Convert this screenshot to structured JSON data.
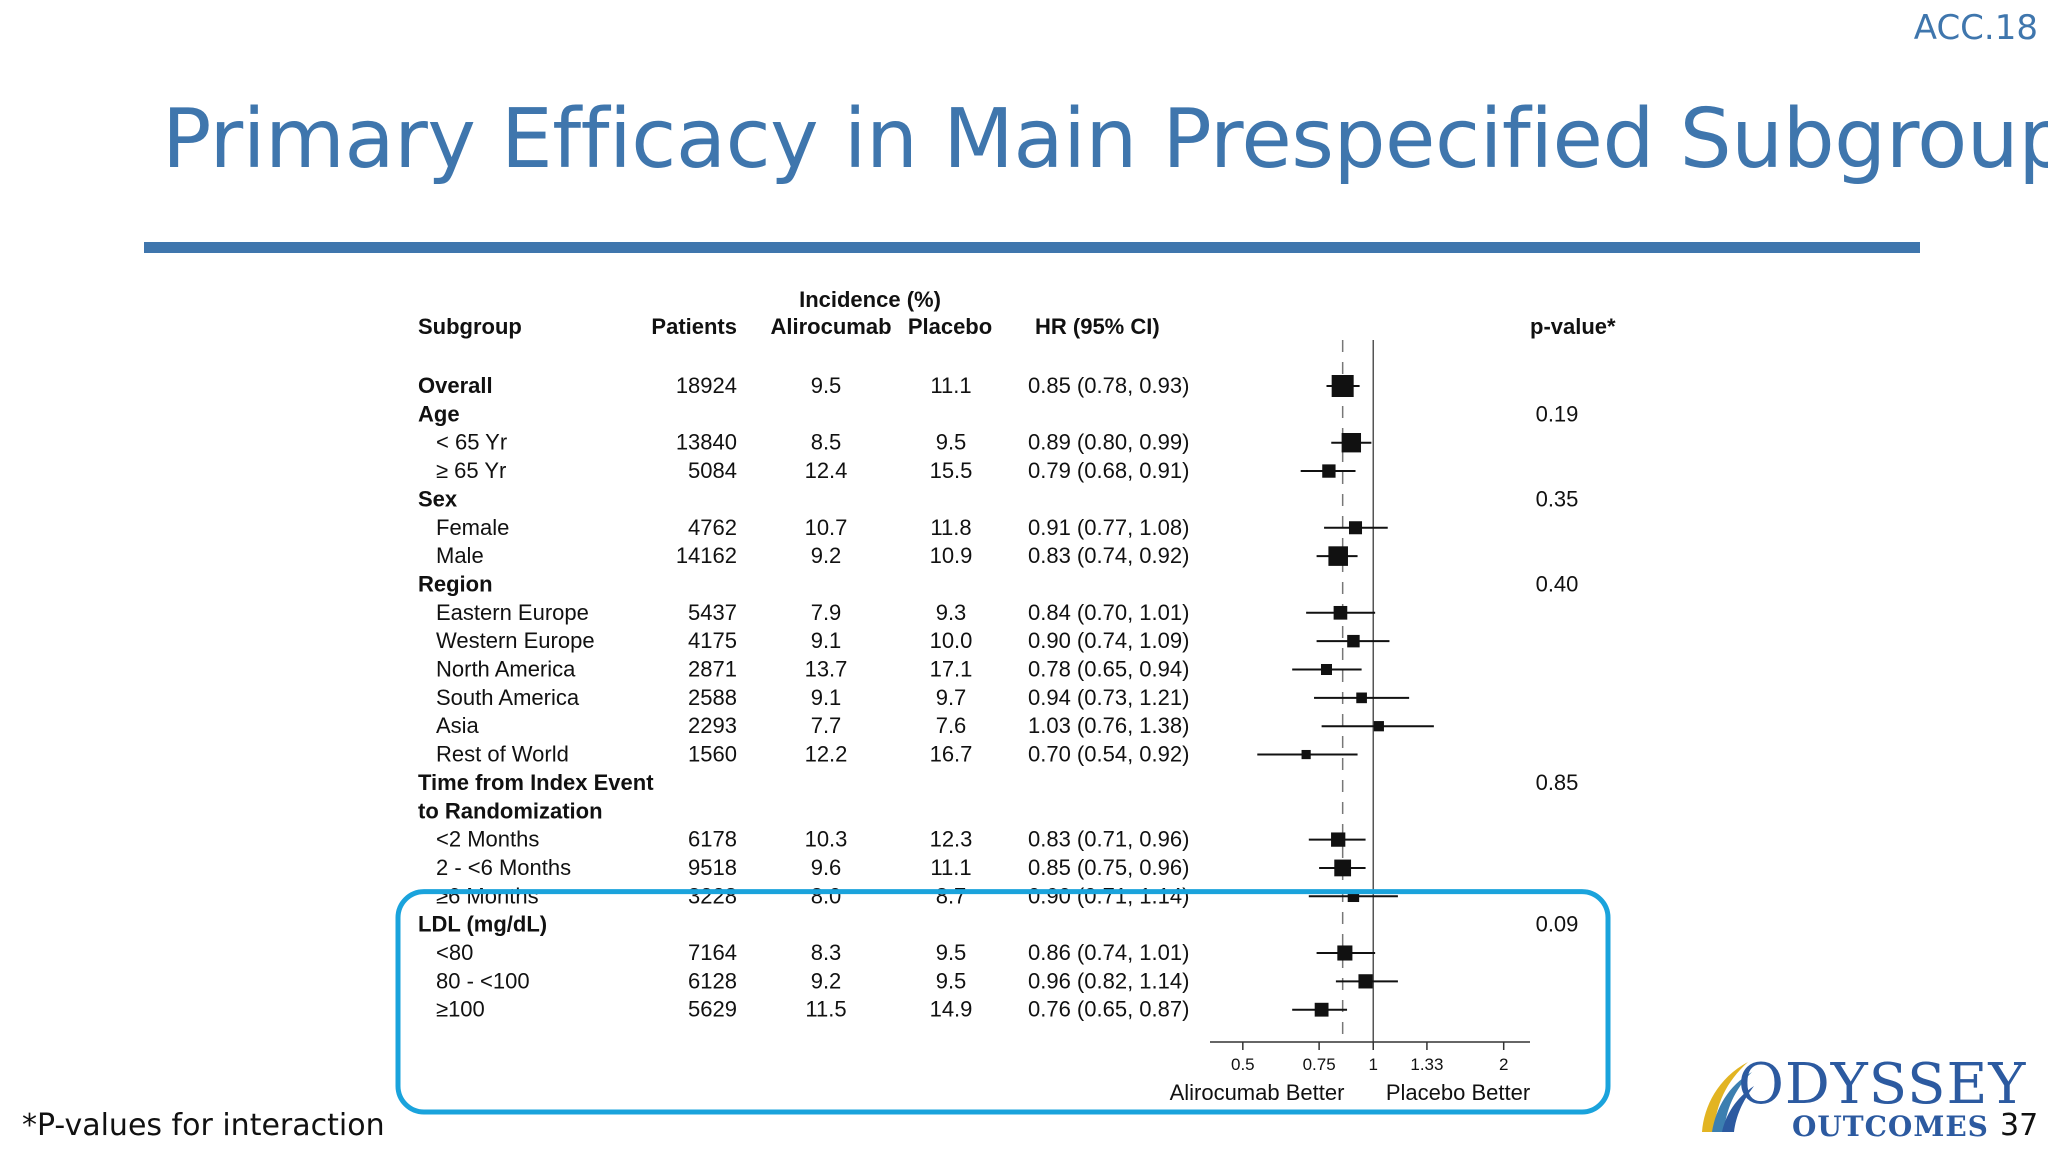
{
  "conference": "ACC.18",
  "title": "Primary Efficacy in Main Prespecified Subgroups",
  "footnote": "*P-values for interaction",
  "page_number": "37",
  "logo": {
    "line1": "ODYSSEY",
    "line2": "OUTCOMES",
    "icon": "swoosh-emblem-icon"
  },
  "colors": {
    "accent": "#3f76ad",
    "highlight": "#1aa3dc",
    "text": "#111111"
  },
  "chart_data": {
    "type": "forest",
    "headers": {
      "subgroup": "Subgroup",
      "patients": "Patients",
      "incidence": "Incidence (%)",
      "alirocumab": "Alirocumab",
      "placebo": "Placebo",
      "hr": "HR (95% CI)",
      "pvalue": "p-value*"
    },
    "x_axis": {
      "scale": "log",
      "range": [
        0.42,
        2.3
      ],
      "ticks": [
        {
          "value": 0.5,
          "label": "0.5"
        },
        {
          "value": 0.75,
          "label": "0.75"
        },
        {
          "value": 1,
          "label": "1"
        },
        {
          "value": 1.33,
          "label": "1.33"
        },
        {
          "value": 2,
          "label": "2"
        }
      ],
      "reference_line": 1,
      "overall_line": 0.85,
      "left_label": "Alirocumab Better",
      "right_label": "Placebo Better"
    },
    "highlight_group": "LDL (mg/dL)",
    "rows": [
      {
        "label": "Overall",
        "heading": true,
        "patients": "18924",
        "alirocumab": "9.5",
        "placebo": "11.1",
        "hr_text": "0.85 (0.78, 0.93)",
        "hr": 0.85,
        "lo": 0.78,
        "hi": 0.93,
        "n": 18924
      },
      {
        "label": "Age",
        "heading": true,
        "pvalue": "0.19"
      },
      {
        "label": "< 65 Yr",
        "patients": "13840",
        "alirocumab": "8.5",
        "placebo": "9.5",
        "hr_text": "0.89 (0.80, 0.99)",
        "hr": 0.89,
        "lo": 0.8,
        "hi": 0.99,
        "n": 13840
      },
      {
        "label": "≥ 65 Yr",
        "patients": "5084",
        "alirocumab": "12.4",
        "placebo": "15.5",
        "hr_text": "0.79 (0.68, 0.91)",
        "hr": 0.79,
        "lo": 0.68,
        "hi": 0.91,
        "n": 5084
      },
      {
        "label": "Sex",
        "heading": true,
        "pvalue": "0.35"
      },
      {
        "label": "Female",
        "patients": "4762",
        "alirocumab": "10.7",
        "placebo": "11.8",
        "hr_text": "0.91 (0.77, 1.08)",
        "hr": 0.91,
        "lo": 0.77,
        "hi": 1.08,
        "n": 4762
      },
      {
        "label": "Male",
        "patients": "14162",
        "alirocumab": "9.2",
        "placebo": "10.9",
        "hr_text": "0.83 (0.74, 0.92)",
        "hr": 0.83,
        "lo": 0.74,
        "hi": 0.92,
        "n": 14162
      },
      {
        "label": "Region",
        "heading": true,
        "pvalue": "0.40"
      },
      {
        "label": "Eastern Europe",
        "patients": "5437",
        "alirocumab": "7.9",
        "placebo": "9.3",
        "hr_text": "0.84 (0.70, 1.01)",
        "hr": 0.84,
        "lo": 0.7,
        "hi": 1.01,
        "n": 5437
      },
      {
        "label": "Western Europe",
        "patients": "4175",
        "alirocumab": "9.1",
        "placebo": "10.0",
        "hr_text": "0.90 (0.74, 1.09)",
        "hr": 0.9,
        "lo": 0.74,
        "hi": 1.09,
        "n": 4175
      },
      {
        "label": "North America",
        "patients": "2871",
        "alirocumab": "13.7",
        "placebo": "17.1",
        "hr_text": "0.78 (0.65, 0.94)",
        "hr": 0.78,
        "lo": 0.65,
        "hi": 0.94,
        "n": 2871
      },
      {
        "label": "South America",
        "patients": "2588",
        "alirocumab": "9.1",
        "placebo": "9.7",
        "hr_text": "0.94 (0.73, 1.21)",
        "hr": 0.94,
        "lo": 0.73,
        "hi": 1.21,
        "n": 2588
      },
      {
        "label": "Asia",
        "patients": "2293",
        "alirocumab": "7.7",
        "placebo": "7.6",
        "hr_text": "1.03 (0.76, 1.38)",
        "hr": 1.03,
        "lo": 0.76,
        "hi": 1.38,
        "n": 2293
      },
      {
        "label": "Rest of World",
        "patients": "1560",
        "alirocumab": "12.2",
        "placebo": "16.7",
        "hr_text": "0.70 (0.54, 0.92)",
        "hr": 0.7,
        "lo": 0.54,
        "hi": 0.92,
        "n": 1560
      },
      {
        "label": "Time from Index Event",
        "heading": true,
        "pvalue": "0.85"
      },
      {
        "label": "to Randomization",
        "heading": true
      },
      {
        "label": "<2 Months",
        "patients": "6178",
        "alirocumab": "10.3",
        "placebo": "12.3",
        "hr_text": "0.83 (0.71, 0.96)",
        "hr": 0.83,
        "lo": 0.71,
        "hi": 0.96,
        "n": 6178
      },
      {
        "label": "2 - <6 Months",
        "patients": "9518",
        "alirocumab": "9.6",
        "placebo": "11.1",
        "hr_text": "0.85 (0.75, 0.96)",
        "hr": 0.85,
        "lo": 0.75,
        "hi": 0.96,
        "n": 9518
      },
      {
        "label": "≥6 Months",
        "patients": "3228",
        "alirocumab": "8.0",
        "placebo": "8.7",
        "hr_text": "0.90 (0.71, 1.14)",
        "hr": 0.9,
        "lo": 0.71,
        "hi": 1.14,
        "n": 3228
      },
      {
        "label": "LDL (mg/dL)",
        "heading": true,
        "pvalue": "0.09"
      },
      {
        "label": "<80",
        "patients": "7164",
        "alirocumab": "8.3",
        "placebo": "9.5",
        "hr_text": "0.86 (0.74, 1.01)",
        "hr": 0.86,
        "lo": 0.74,
        "hi": 1.01,
        "n": 7164
      },
      {
        "label": "80 - <100",
        "patients": "6128",
        "alirocumab": "9.2",
        "placebo": "9.5",
        "hr_text": "0.96 (0.82, 1.14)",
        "hr": 0.96,
        "lo": 0.82,
        "hi": 1.14,
        "n": 6128
      },
      {
        "label": "≥100",
        "patients": "5629",
        "alirocumab": "11.5",
        "placebo": "14.9",
        "hr_text": "0.76 (0.65, 0.87)",
        "hr": 0.76,
        "lo": 0.65,
        "hi": 0.87,
        "n": 5629
      }
    ]
  }
}
